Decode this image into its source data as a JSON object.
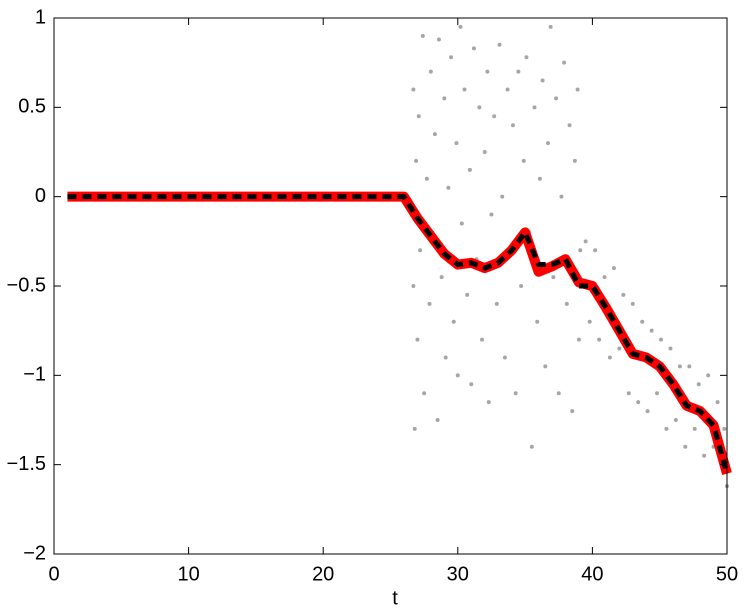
{
  "chart_data": {
    "type": "line",
    "xlabel": "t",
    "xlim": [
      0,
      50
    ],
    "ylim": [
      -2,
      1
    ],
    "xticks": [
      0,
      10,
      20,
      30,
      40,
      50
    ],
    "yticks": [
      {
        "value": -2,
        "label": "−2"
      },
      {
        "value": -1.5,
        "label": "−1.5"
      },
      {
        "value": -1,
        "label": "−1"
      },
      {
        "value": -0.5,
        "label": "−0.5"
      },
      0,
      0.5,
      1
    ],
    "x": [
      1,
      2,
      3,
      4,
      5,
      6,
      7,
      8,
      9,
      10,
      11,
      12,
      13,
      14,
      15,
      16,
      17,
      18,
      19,
      20,
      21,
      22,
      23,
      24,
      25,
      26,
      27,
      28,
      29,
      30,
      31,
      32,
      33,
      34,
      35,
      36,
      37,
      38,
      39,
      40,
      41,
      42,
      43,
      44,
      45,
      46,
      47,
      48,
      49,
      50
    ],
    "series": [
      {
        "color": "#ff0000",
        "style": "solid",
        "values": [
          0,
          0,
          0,
          0,
          0,
          0,
          0,
          0,
          0,
          0,
          0,
          0,
          0,
          0,
          0,
          0,
          0,
          0,
          0,
          0,
          0,
          0,
          0,
          0,
          0,
          0,
          -0.12,
          -0.22,
          -0.32,
          -0.38,
          -0.37,
          -0.4,
          -0.37,
          -0.3,
          -0.2,
          -0.42,
          -0.39,
          -0.35,
          -0.48,
          -0.5,
          -0.62,
          -0.75,
          -0.88,
          -0.9,
          -0.95,
          -1.05,
          -1.17,
          -1.2,
          -1.28,
          -1.55
        ]
      },
      {
        "color": "#000000",
        "style": "dashed",
        "values": [
          0,
          0,
          0,
          0,
          0,
          0,
          0,
          0,
          0,
          0,
          0,
          0,
          0,
          0,
          0,
          0,
          0,
          0,
          0,
          0,
          0,
          0,
          0,
          0,
          0,
          0,
          -0.12,
          -0.22,
          -0.32,
          -0.38,
          -0.37,
          -0.4,
          -0.37,
          -0.3,
          -0.2,
          -0.38,
          -0.38,
          -0.35,
          -0.5,
          -0.5,
          -0.62,
          -0.75,
          -0.88,
          -0.9,
          -0.95,
          -1.05,
          -1.17,
          -1.2,
          -1.28,
          -1.55
        ]
      }
    ],
    "scatter": {
      "color": "#a6a6a6",
      "x": [
        26.7,
        26.7,
        26.8,
        26.9,
        27.0,
        27.1,
        27.2,
        27.4,
        27.5,
        27.7,
        27.9,
        28.0,
        28.1,
        28.3,
        28.5,
        28.6,
        28.8,
        29.0,
        29.1,
        29.3,
        29.5,
        29.7,
        29.9,
        30.0,
        30.2,
        30.3,
        30.5,
        30.7,
        30.9,
        31.0,
        31.2,
        31.4,
        31.6,
        31.8,
        32.0,
        32.2,
        32.3,
        32.5,
        32.7,
        32.9,
        33.1,
        33.3,
        33.5,
        33.7,
        33.9,
        34.1,
        34.3,
        34.5,
        34.7,
        34.9,
        35.1,
        35.3,
        35.5,
        35.7,
        35.9,
        36.1,
        36.3,
        36.5,
        36.7,
        36.9,
        37.1,
        37.3,
        37.5,
        37.7,
        37.9,
        38.1,
        38.3,
        38.5,
        38.7,
        38.9,
        39.0,
        39.1,
        39.5,
        39.8,
        40.2,
        40.5,
        40.9,
        41.3,
        41.6,
        42.0,
        42.3,
        42.7,
        43.0,
        43.4,
        43.7,
        44.1,
        44.4,
        44.8,
        45.1,
        45.5,
        45.8,
        46.2,
        46.5,
        46.9,
        47.2,
        47.6,
        47.9,
        48.3,
        48.6,
        49.0,
        49.3,
        49.6,
        49.8,
        50.0
      ],
      "y": [
        0.6,
        -0.5,
        -1.3,
        0.2,
        -0.8,
        0.45,
        -0.3,
        0.9,
        -1.1,
        0.1,
        -0.6,
        0.7,
        -0.2,
        0.35,
        -1.25,
        0.88,
        -0.45,
        0.55,
        -0.9,
        0.05,
        0.78,
        -0.7,
        0.3,
        -1.0,
        0.95,
        -0.15,
        0.6,
        -0.55,
        0.15,
        -1.05,
        0.83,
        -0.35,
        0.5,
        -0.8,
        0.25,
        0.7,
        -1.15,
        -0.1,
        0.45,
        -0.6,
        0.85,
        0.0,
        -0.9,
        0.6,
        -0.3,
        0.4,
        -1.1,
        0.7,
        -0.5,
        0.2,
        0.78,
        -0.2,
        -1.4,
        0.5,
        -0.7,
        0.1,
        0.65,
        -0.95,
        0.3,
        0.95,
        -0.45,
        0.55,
        -1.1,
        0.0,
        0.75,
        -0.6,
        0.4,
        -1.2,
        0.2,
        0.6,
        -0.8,
        -0.3,
        -0.25,
        -0.7,
        -0.3,
        -0.8,
        -0.45,
        -0.9,
        -0.4,
        -0.85,
        -0.55,
        -1.1,
        -0.6,
        -1.15,
        -0.7,
        -1.2,
        -0.75,
        -1.1,
        -0.8,
        -1.3,
        -0.85,
        -1.25,
        -0.95,
        -1.4,
        -0.95,
        -1.3,
        -1.05,
        -1.45,
        -1.0,
        -1.4,
        -1.15,
        -1.5,
        -1.3,
        -1.62
      ]
    }
  }
}
